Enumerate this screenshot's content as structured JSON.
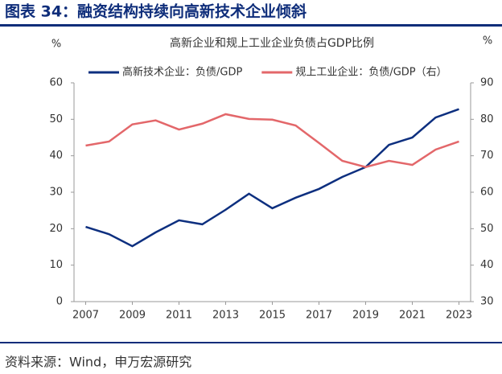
{
  "header": {
    "title": "图表 34：融资结构持续向高新技术企业倾斜"
  },
  "chart_data": {
    "type": "line",
    "title": "高新企业和规上工业企业负债占GDP比例",
    "ylabel": "%",
    "y2label": "%",
    "x": [
      2007,
      2008,
      2009,
      2010,
      2011,
      2012,
      2013,
      2014,
      2015,
      2016,
      2017,
      2018,
      2019,
      2020,
      2021,
      2022,
      2023
    ],
    "xlim": [
      2006.5,
      2023.5
    ],
    "xticks": [
      2007,
      2009,
      2011,
      2013,
      2015,
      2017,
      2019,
      2021,
      2023
    ],
    "ylim": [
      0,
      60
    ],
    "yticks": [
      0,
      10,
      20,
      30,
      40,
      50,
      60
    ],
    "y2lim": [
      30,
      90
    ],
    "y2ticks": [
      30,
      40,
      50,
      60,
      70,
      80,
      90
    ],
    "grid": false,
    "legend": "top",
    "series": [
      {
        "name": "高新技术企业：负债/GDP",
        "color": "#0d2f7f",
        "values": [
          20.5,
          18.5,
          15.2,
          19.0,
          22.3,
          21.2,
          25.2,
          29.6,
          25.6,
          28.5,
          30.9,
          34.2,
          36.9,
          43.0,
          45.0,
          50.5,
          52.8
        ]
      },
      {
        "name": "规上工业企业：负债/GDP（右）",
        "color": "#e3676a",
        "axis": "y2",
        "values": [
          72.8,
          73.9,
          78.6,
          79.7,
          77.2,
          78.8,
          81.4,
          80.1,
          79.9,
          78.3,
          73.5,
          68.6,
          66.9,
          68.6,
          67.5,
          71.7,
          73.9
        ]
      }
    ]
  },
  "source": "资料来源：Wind，申万宏源研究"
}
